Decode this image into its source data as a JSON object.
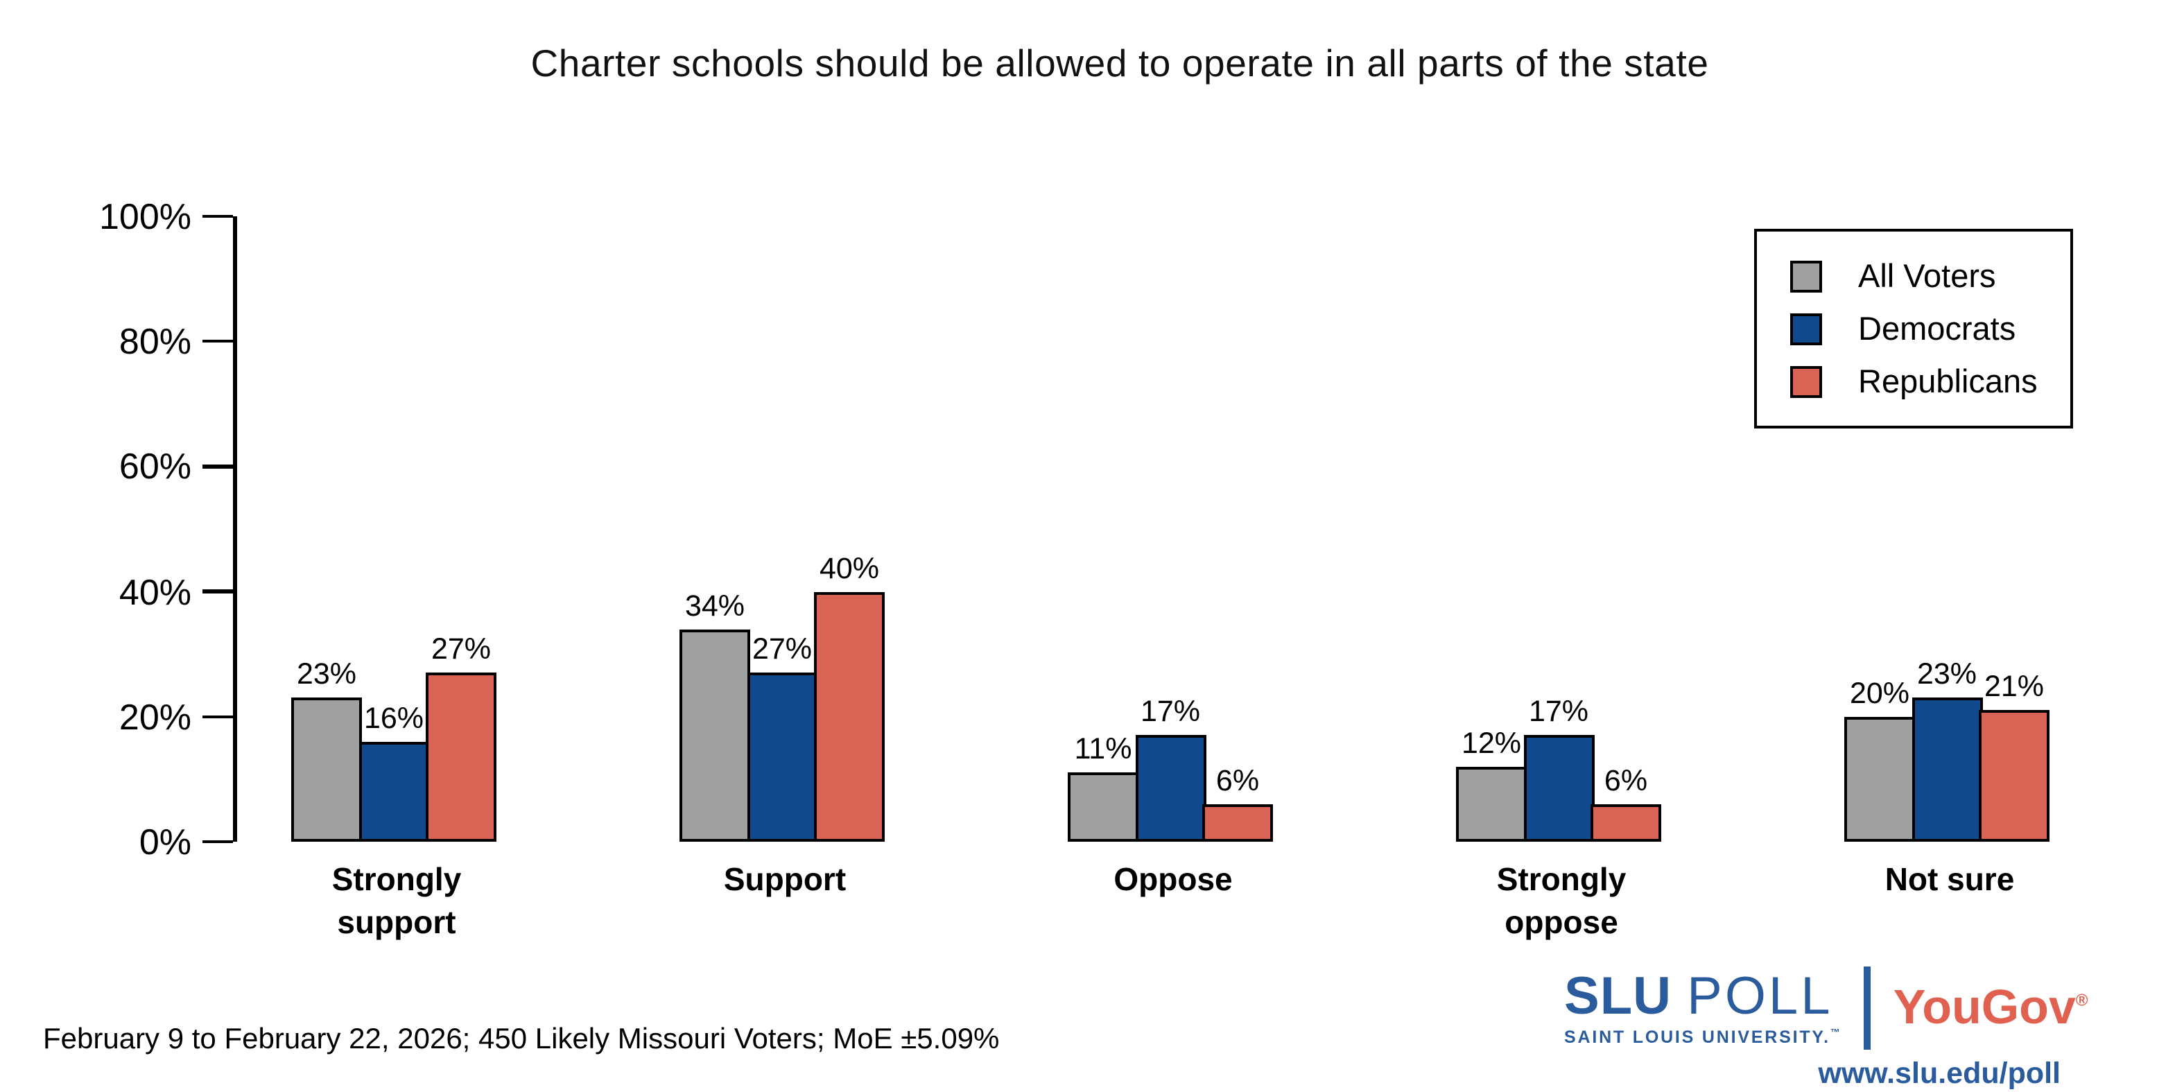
{
  "chart_data": {
    "type": "bar",
    "title": "Charter schools should be allowed to operate in all parts of the state",
    "categories": [
      "Strongly support",
      "Support",
      "Oppose",
      "Strongly oppose",
      "Not sure"
    ],
    "series": [
      {
        "name": "All Voters",
        "color": "#9fa0a0",
        "values": [
          23,
          34,
          11,
          12,
          20
        ]
      },
      {
        "name": "Democrats",
        "color": "#124a8d",
        "values": [
          16,
          27,
          17,
          17,
          23
        ]
      },
      {
        "name": "Republicans",
        "color": "#d96456",
        "values": [
          27,
          40,
          6,
          6,
          21
        ]
      }
    ],
    "yticks": [
      0,
      20,
      40,
      60,
      80,
      100
    ],
    "ytick_suffix": "%",
    "ylim": [
      0,
      100
    ],
    "value_suffix": "%",
    "grid": false,
    "legend_position": "top-right"
  },
  "footer": {
    "note": "February 9 to February 22, 2026; 450 Likely Missouri Voters; MoE ±5.09%"
  },
  "logo": {
    "slu": "SLU",
    "poll": "POLL",
    "university": "SAINT LOUIS UNIVERSITY.",
    "trademark": "™",
    "partner": "YouGov",
    "registered": "®",
    "url": "www.slu.edu/poll",
    "slu_color": "#2a5b9c",
    "partner_color": "#e0614f"
  }
}
